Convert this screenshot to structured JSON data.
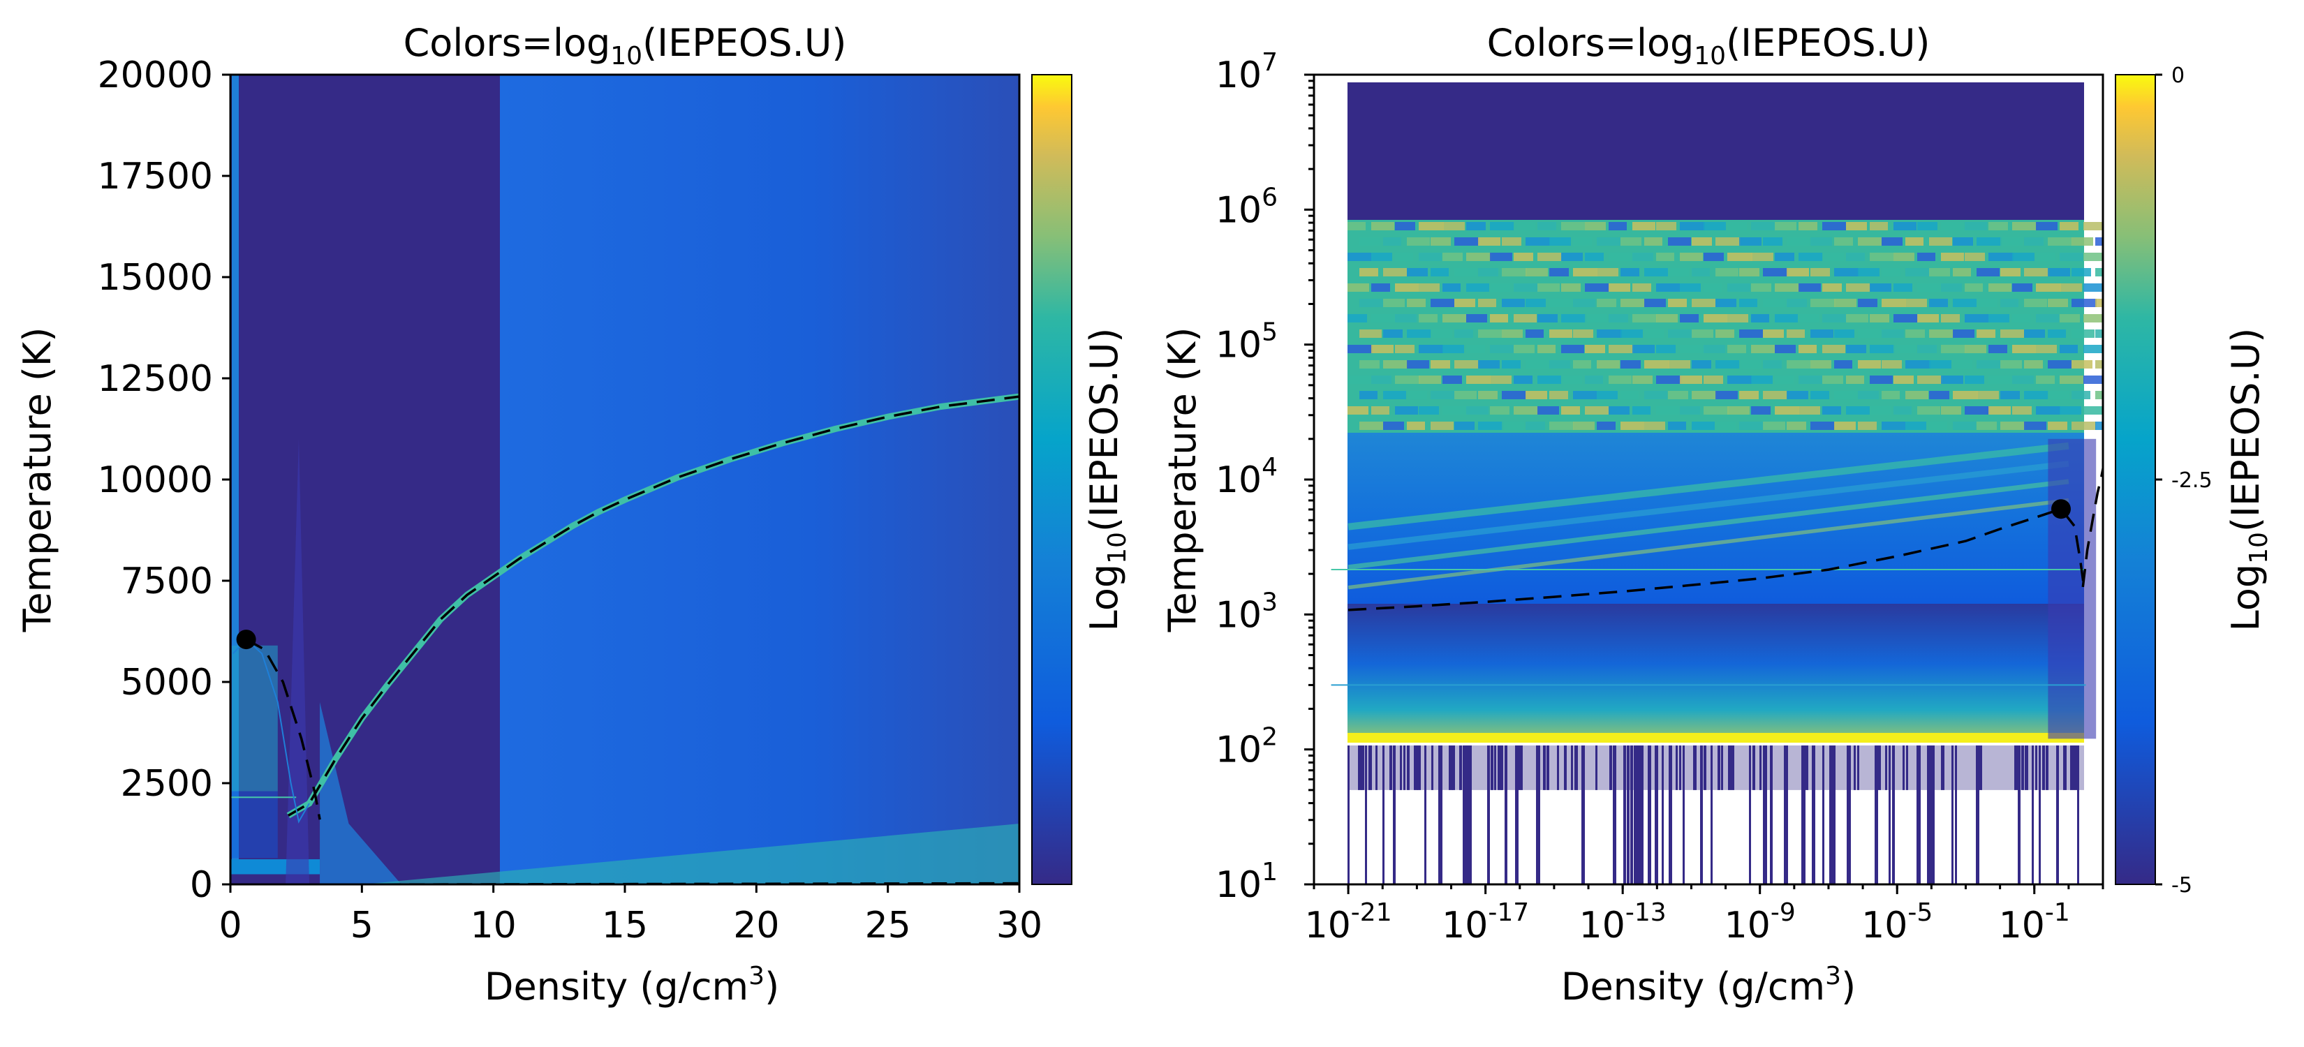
{
  "chart_data": [
    {
      "type": "heatmap",
      "title_prefix": "Colors=log",
      "title_sub": "10",
      "title_suffix": "(IEPEOS.U)",
      "xlabel_prefix": "Density (g/cm",
      "xlabel_sup": "3",
      "xlabel_suffix": ")",
      "ylabel": "Temperature (K)",
      "xlim": [
        0,
        30
      ],
      "ylim": [
        0,
        20000
      ],
      "xticks": [
        "0",
        "5",
        "10",
        "15",
        "20",
        "25",
        "30"
      ],
      "yticks": [
        "0",
        "2500",
        "5000",
        "7500",
        "10000",
        "12500",
        "15000",
        "17500",
        "20000"
      ],
      "critical_point": {
        "x": 0.6,
        "y": 6050
      },
      "coexistence_curve": [
        [
          0.6,
          6050
        ],
        [
          1.3,
          5800
        ],
        [
          2.0,
          5000
        ],
        [
          2.7,
          3600
        ],
        [
          3.2,
          2300
        ],
        [
          3.4,
          1600
        ]
      ],
      "spinodal_curve": [
        [
          0.1,
          5700
        ],
        [
          0.6,
          6050
        ],
        [
          1.2,
          5700
        ],
        [
          1.8,
          4500
        ],
        [
          2.3,
          2500
        ],
        [
          2.6,
          1550
        ],
        [
          3.0,
          2000
        ]
      ],
      "melting_curve": [
        [
          2.2,
          1700
        ],
        [
          3.0,
          2000
        ],
        [
          4.0,
          3100
        ],
        [
          5.0,
          4100
        ],
        [
          6.0,
          4950
        ],
        [
          7.0,
          5750
        ],
        [
          8.0,
          6550
        ],
        [
          9.0,
          7150
        ],
        [
          10.0,
          7600
        ],
        [
          11.0,
          8050
        ],
        [
          12.0,
          8450
        ],
        [
          13.0,
          8850
        ],
        [
          14.0,
          9200
        ],
        [
          15.0,
          9500
        ],
        [
          17.0,
          10050
        ],
        [
          19.0,
          10500
        ],
        [
          21.0,
          10900
        ],
        [
          23.0,
          11250
        ],
        [
          25.0,
          11550
        ],
        [
          27.0,
          11800
        ],
        [
          30.0,
          12050
        ]
      ],
      "low_curve": [
        [
          5,
          0
        ],
        [
          30,
          30
        ]
      ],
      "colorbar": {
        "label_prefix": "Log",
        "label_sub": "10",
        "label_suffix": "(IEPEOS.U)",
        "range": [
          -5,
          0
        ],
        "ticks": []
      }
    },
    {
      "type": "heatmap",
      "title_prefix": "Colors=log",
      "title_sub": "10",
      "title_suffix": "(IEPEOS.U)",
      "xlabel_prefix": "Density (g/cm",
      "xlabel_sup": "3",
      "xlabel_suffix": ")",
      "ylabel": "Temperature (K)",
      "xscale": "log",
      "yscale": "log",
      "xlim_exp": [
        -22,
        1
      ],
      "ylim_exp": [
        1,
        7
      ],
      "xtick_exps": [
        "-21",
        "-17",
        "-13",
        "-9",
        "-5",
        "-1"
      ],
      "ytick_exps": [
        "1",
        "2",
        "3",
        "4",
        "5",
        "6",
        "7"
      ],
      "tick_base": "10",
      "critical_point": {
        "x": 0.6,
        "y": 6050
      },
      "coexistence_curve": [
        [
          1e-21,
          1080
        ],
        [
          1e-19,
          1150
        ],
        [
          1e-17,
          1240
        ],
        [
          1e-15,
          1350
        ],
        [
          1e-13,
          1480
        ],
        [
          1e-11,
          1650
        ],
        [
          1e-09,
          1850
        ],
        [
          1e-07,
          2150
        ],
        [
          1e-05,
          2700
        ],
        [
          0.001,
          3500
        ],
        [
          0.01,
          4300
        ],
        [
          0.1,
          5200
        ],
        [
          0.6,
          6050
        ],
        [
          1.5,
          4500
        ],
        [
          2.2,
          2500
        ],
        [
          2.8,
          1600
        ]
      ],
      "melting_curve": [
        [
          2.6,
          1600
        ],
        [
          3.5,
          3000
        ],
        [
          5.0,
          5000
        ],
        [
          7.0,
          8000
        ],
        [
          9.0,
          10500
        ],
        [
          11.0,
          13500
        ],
        [
          14,
          16000
        ]
      ],
      "colorbar": {
        "label_prefix": "Log",
        "label_sub": "10",
        "label_suffix": "(IEPEOS.U)",
        "range": [
          -5,
          0
        ],
        "ticks": [
          "0",
          "-2.5",
          "-5"
        ]
      }
    }
  ]
}
